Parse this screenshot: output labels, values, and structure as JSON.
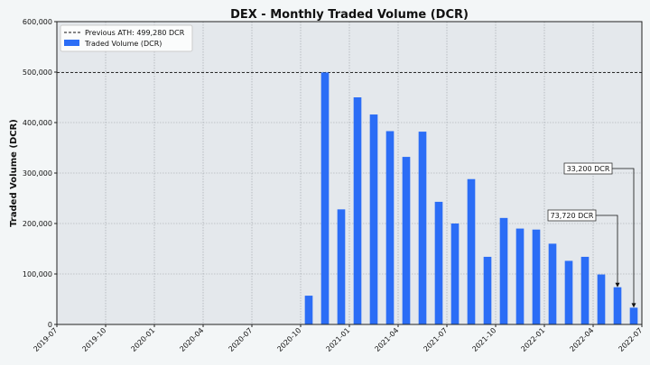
{
  "chart_data": {
    "type": "bar",
    "title": "DEX - Monthly Traded Volume (DCR)",
    "ylabel": "Traded Volume (DCR)",
    "xlabel": "",
    "ylim": [
      0,
      600000
    ],
    "xlim": [
      "2019-07",
      "2022-07"
    ],
    "grid": true,
    "legend_position": "top-left",
    "y_ticks": [
      0,
      100000,
      200000,
      300000,
      400000,
      500000,
      600000
    ],
    "y_tick_labels": [
      "0",
      "100,000",
      "200,000",
      "300,000",
      "400,000",
      "500,000",
      "600,000"
    ],
    "x_tick_labels": [
      "2019-07",
      "2019-10",
      "2020-01",
      "2020-04",
      "2020-07",
      "2020-10",
      "2021-01",
      "2021-04",
      "2021-07",
      "2021-10",
      "2022-01",
      "2022-04",
      "2022-07"
    ],
    "series": [
      {
        "name": "Traded Volume (DCR)",
        "color": "#2b6df6",
        "categories": [
          "2020-10",
          "2020-11",
          "2020-12",
          "2021-01",
          "2021-02",
          "2021-03",
          "2021-04",
          "2021-05",
          "2021-06",
          "2021-07",
          "2021-08",
          "2021-09",
          "2021-10",
          "2021-11",
          "2021-12",
          "2022-01",
          "2022-02",
          "2022-03",
          "2022-04",
          "2022-05",
          "2022-06"
        ],
        "values": [
          57000,
          499280,
          228000,
          450000,
          416000,
          383000,
          332000,
          382000,
          243000,
          200000,
          288000,
          134000,
          211000,
          190000,
          188000,
          160000,
          126000,
          134000,
          99000,
          73720,
          33200
        ]
      }
    ],
    "reference_line": {
      "label": "Previous ATH: 499,280 DCR",
      "value": 499280,
      "style": "dashed",
      "color": "#111111"
    },
    "annotations": [
      {
        "text": "73,720 DCR",
        "target": "2022-05",
        "value": 73720
      },
      {
        "text": "33,200 DCR",
        "target": "2022-06",
        "value": 33200
      }
    ]
  }
}
